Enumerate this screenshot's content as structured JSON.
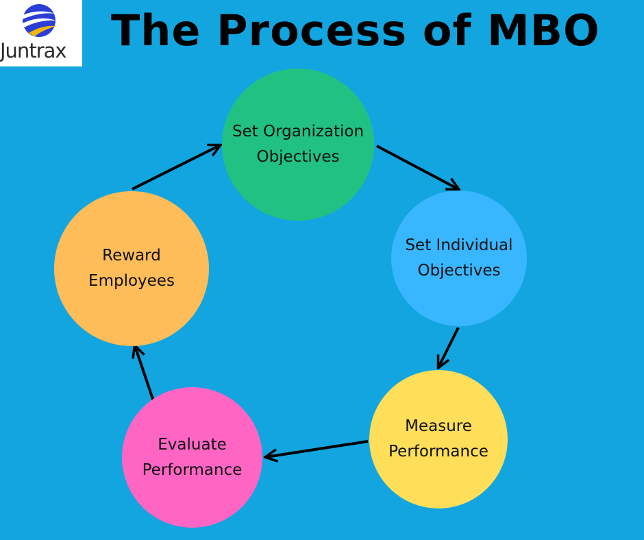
{
  "logo": {
    "text": "Juntrax",
    "icon": "globe-swoosh-icon",
    "colors": [
      "#2b3fd6",
      "#f2b705"
    ]
  },
  "title": "The Process of MBO",
  "nodes": [
    {
      "id": "set-organization-objectives",
      "lines": [
        "Set Organization",
        "Objectives"
      ],
      "color": "#21c281"
    },
    {
      "id": "set-individual-objectives",
      "lines": [
        "Set Individual",
        "Objectives"
      ],
      "color": "#38b6ff"
    },
    {
      "id": "measure-performance",
      "lines": [
        "Measure",
        "Performance"
      ],
      "color": "#ffde59"
    },
    {
      "id": "evaluate-performance",
      "lines": [
        "Evaluate",
        "Performance"
      ],
      "color": "#ff66c4"
    },
    {
      "id": "reward-employees",
      "lines": [
        "Reward",
        "Employees"
      ],
      "color": "#ffbd59"
    }
  ],
  "edges": [
    {
      "from": "set-organization-objectives",
      "to": "set-individual-objectives"
    },
    {
      "from": "set-individual-objectives",
      "to": "measure-performance"
    },
    {
      "from": "measure-performance",
      "to": "evaluate-performance"
    },
    {
      "from": "evaluate-performance",
      "to": "reward-employees"
    },
    {
      "from": "reward-employees",
      "to": "set-organization-objectives"
    }
  ],
  "colors": {
    "background": "#12a5e0",
    "arrow": "#000000"
  }
}
